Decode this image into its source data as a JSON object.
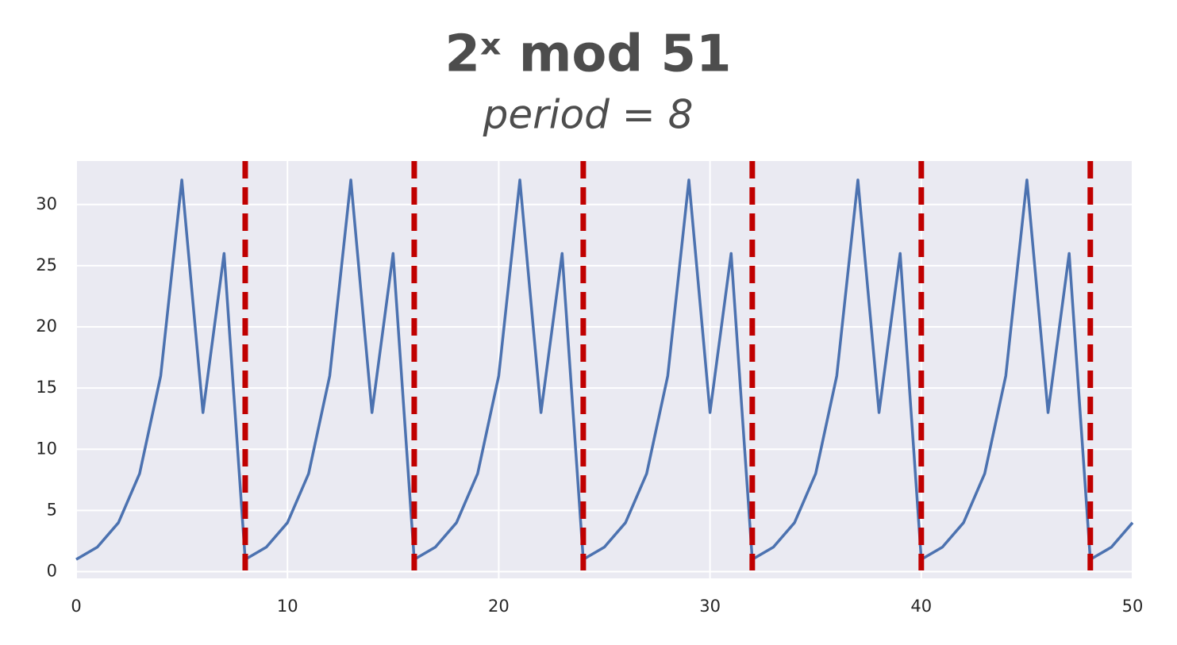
{
  "chart_data": {
    "type": "line",
    "title": "2ˣ mod 51",
    "subtitle": "period = 8",
    "x": [
      0,
      1,
      2,
      3,
      4,
      5,
      6,
      7,
      8,
      9,
      10,
      11,
      12,
      13,
      14,
      15,
      16,
      17,
      18,
      19,
      20,
      21,
      22,
      23,
      24,
      25,
      26,
      27,
      28,
      29,
      30,
      31,
      32,
      33,
      34,
      35,
      36,
      37,
      38,
      39,
      40,
      41,
      42,
      43,
      44,
      45,
      46,
      47,
      48,
      49,
      50
    ],
    "values": [
      1,
      2,
      4,
      8,
      16,
      32,
      13,
      26,
      1,
      2,
      4,
      8,
      16,
      32,
      13,
      26,
      1,
      2,
      4,
      8,
      16,
      32,
      13,
      26,
      1,
      2,
      4,
      8,
      16,
      32,
      13,
      26,
      1,
      2,
      4,
      8,
      16,
      32,
      13,
      26,
      1,
      2,
      4,
      8,
      16,
      32,
      13,
      26,
      1,
      2,
      4
    ],
    "color": "#4c72b0",
    "vlines": {
      "x": [
        8,
        16,
        24,
        32,
        40,
        48
      ],
      "color": "#c00000"
    },
    "xlim": [
      0,
      50
    ],
    "xticks": [
      0,
      10,
      20,
      30,
      40,
      50
    ],
    "ylim": [
      -0.55,
      33.55
    ],
    "yticks": [
      0,
      5,
      10,
      15,
      20,
      25,
      30
    ],
    "grid": true
  }
}
